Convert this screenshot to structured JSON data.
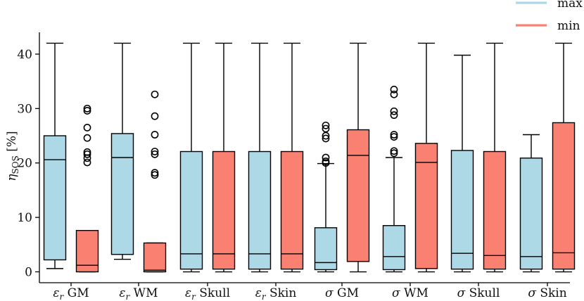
{
  "chart_data": {
    "type": "box",
    "title": "",
    "ylabel": "η_SOS [%]",
    "ylim": [
      -2,
      44
    ],
    "yticks": [
      0,
      10,
      20,
      30,
      40
    ],
    "categories": [
      "ε_r GM",
      "ε_r WM",
      "ε_r Skull",
      "ε_r Skin",
      "σ GM",
      "σ WM",
      "σ Skull",
      "σ Skin"
    ],
    "legend": {
      "position": "top-right"
    },
    "series": [
      {
        "name": "max",
        "color": "#add8e6",
        "boxes": [
          {
            "whislo": 0.6,
            "q1": 2.2,
            "med": 20.6,
            "q3": 25.0,
            "whishi": 42.0,
            "fliers": []
          },
          {
            "whislo": 2.3,
            "q1": 3.2,
            "med": 21.0,
            "q3": 25.4,
            "whishi": 42.0,
            "fliers": []
          },
          {
            "whislo": 0.0,
            "q1": 0.5,
            "med": 3.3,
            "q3": 22.1,
            "whishi": 42.0,
            "fliers": []
          },
          {
            "whislo": 0.0,
            "q1": 0.5,
            "med": 3.3,
            "q3": 22.1,
            "whishi": 42.0,
            "fliers": []
          },
          {
            "whislo": 0.0,
            "q1": 0.4,
            "med": 1.7,
            "q3": 8.1,
            "whishi": 19.9,
            "fliers": [
              20.0,
              20.3,
              21.0,
              24.5,
              25.0,
              26.3,
              26.9
            ]
          },
          {
            "whislo": 0.0,
            "q1": 0.4,
            "med": 2.8,
            "q3": 8.5,
            "whishi": 21.0,
            "fliers": [
              21.8,
              22.2,
              24.8,
              25.2,
              28.8,
              29.5,
              32.6,
              33.5
            ]
          },
          {
            "whislo": 0.0,
            "q1": 0.5,
            "med": 3.4,
            "q3": 22.3,
            "whishi": 39.8,
            "fliers": []
          },
          {
            "whislo": 0.0,
            "q1": 0.5,
            "med": 2.8,
            "q3": 20.9,
            "whishi": 25.2,
            "fliers": []
          }
        ]
      },
      {
        "name": "min",
        "color": "#fa8072",
        "boxes": [
          {
            "whislo": 0.0,
            "q1": 0.0,
            "med": 1.2,
            "q3": 7.6,
            "whishi": 7.6,
            "fliers": [
              20.1,
              20.9,
              21.6,
              22.0,
              24.6,
              26.5,
              29.6,
              30.0
            ]
          },
          {
            "whislo": 0.0,
            "q1": 0.0,
            "med": 0.3,
            "q3": 5.3,
            "whishi": 5.3,
            "fliers": [
              17.8,
              18.2,
              21.6,
              22.1,
              25.2,
              28.6,
              32.6
            ]
          },
          {
            "whislo": 0.0,
            "q1": 0.5,
            "med": 3.3,
            "q3": 22.1,
            "whishi": 42.0,
            "fliers": []
          },
          {
            "whislo": 0.0,
            "q1": 0.5,
            "med": 3.3,
            "q3": 22.1,
            "whishi": 42.0,
            "fliers": []
          },
          {
            "whislo": 0.0,
            "q1": 1.9,
            "med": 21.4,
            "q3": 26.1,
            "whishi": 42.0,
            "fliers": []
          },
          {
            "whislo": 0.0,
            "q1": 0.6,
            "med": 20.1,
            "q3": 23.6,
            "whishi": 42.0,
            "fliers": []
          },
          {
            "whislo": 0.0,
            "q1": 0.5,
            "med": 3.0,
            "q3": 22.1,
            "whishi": 42.0,
            "fliers": []
          },
          {
            "whislo": 0.0,
            "q1": 0.5,
            "med": 3.5,
            "q3": 27.4,
            "whishi": 42.0,
            "fliers": []
          }
        ]
      }
    ]
  }
}
